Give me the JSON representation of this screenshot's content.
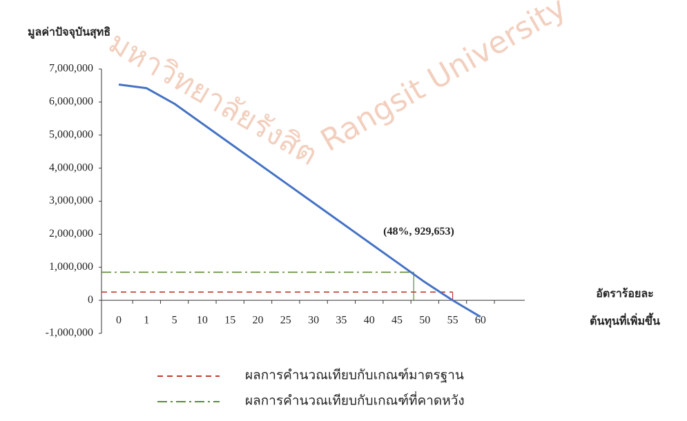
{
  "chart_data": {
    "type": "line",
    "y_axis_title": "มูลค่าปัจจุบันสุทธิ",
    "x_axis_title": [
      "อัตราร้อยละ",
      "ต้นทุนที่เพิ่มขึ้น"
    ],
    "watermark": [
      "มหาวิทยาลัยรังสิต",
      "Rangsit University"
    ],
    "categories": [
      "0",
      "1",
      "5",
      "10",
      "15",
      "20",
      "25",
      "30",
      "35",
      "40",
      "45",
      "50",
      "55",
      "60"
    ],
    "series": [
      {
        "color": "#4472c4",
        "values": [
          6530000,
          6420000,
          5950000,
          5350000,
          4750000,
          4150000,
          3550000,
          2950000,
          2350000,
          1750000,
          1150000,
          550000,
          0,
          -500000
        ]
      }
    ],
    "reference_lines": [
      {
        "name": "ผลการคำนวณเทียบกับเกณฑ์มาตรฐาน",
        "value": 250000,
        "color": "#c0392b",
        "style": "dash",
        "end": 55
      },
      {
        "name": "ผลการคำนวณเทียบกับเกณฑ์ที่คาดหวัง",
        "value": 850000,
        "color": "#5b8a32",
        "style": "dashdot",
        "end": 48
      }
    ],
    "annotation": "(48%, 929,653)",
    "ylim": [
      -1000000,
      7000000
    ],
    "yticks": [
      {
        "value": -1000000,
        "label": "-1,000,000"
      },
      0,
      {
        "value": 1000000,
        "label": "1,000,000"
      },
      {
        "value": 2000000,
        "label": "2,000,000"
      },
      {
        "value": 3000000,
        "label": "3,000,000"
      },
      {
        "value": 4000000,
        "label": "4,000,000"
      },
      {
        "value": 5000000,
        "label": "5,000,000"
      },
      {
        "value": 6000000,
        "label": "6,000,000"
      },
      {
        "value": 7000000,
        "label": "7,000,000"
      }
    ]
  }
}
